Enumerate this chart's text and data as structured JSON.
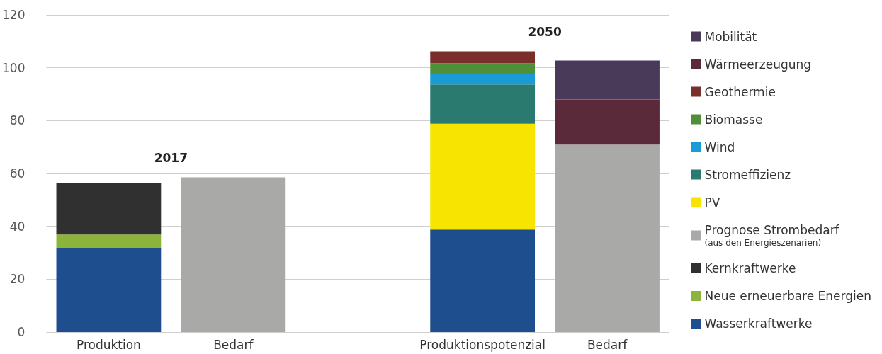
{
  "chart_data": {
    "type": "bar",
    "stacked": true,
    "categories": [
      "Produktion",
      "Bedarf",
      null,
      "Produktionspotenzial",
      "Bedarf"
    ],
    "series": [
      {
        "name": "Wasserkraftwerke",
        "color": "#1f4e8f",
        "values": [
          31.9,
          null,
          null,
          38.8,
          null
        ]
      },
      {
        "name": "Neue erneuerbare Energien",
        "color": "#8cb43a",
        "values": [
          5.0,
          null,
          null,
          null,
          null
        ]
      },
      {
        "name": "Kernkraftwerke",
        "color": "#303030",
        "values": [
          19.4,
          null,
          null,
          null,
          null
        ]
      },
      {
        "name": "Prognose Strombedarf\n(aus den Energieszenarien)",
        "color": "#a9aaa8",
        "values": [
          null,
          58.5,
          null,
          null,
          70.9
        ]
      },
      {
        "name": "PV",
        "color": "#f7e400",
        "values": [
          null,
          null,
          null,
          40.0,
          null
        ]
      },
      {
        "name": "Stromeffizienz",
        "color": "#2b7a70",
        "values": [
          null,
          null,
          null,
          14.9,
          null
        ]
      },
      {
        "name": "Wind",
        "color": "#1a9ad6",
        "values": [
          null,
          null,
          null,
          4.1,
          null
        ]
      },
      {
        "name": "Biomasse",
        "color": "#4f8f3a",
        "values": [
          null,
          null,
          null,
          3.9,
          null
        ]
      },
      {
        "name": "Geothermie",
        "color": "#7a2f2a",
        "values": [
          null,
          null,
          null,
          4.5,
          null
        ]
      },
      {
        "name": "Wärmeerzeugung",
        "color": "#5a2a3a",
        "values": [
          null,
          null,
          null,
          null,
          17.1
        ]
      },
      {
        "name": "Mobilität",
        "color": "#4a3a5a",
        "values": [
          null,
          null,
          null,
          null,
          14.7
        ]
      }
    ],
    "ylim": [
      0,
      120
    ],
    "yticks": [
      0,
      20,
      40,
      60,
      80,
      100,
      120
    ],
    "grid": "y",
    "legend": "right",
    "annotations": [
      "2017",
      "2050"
    ]
  }
}
